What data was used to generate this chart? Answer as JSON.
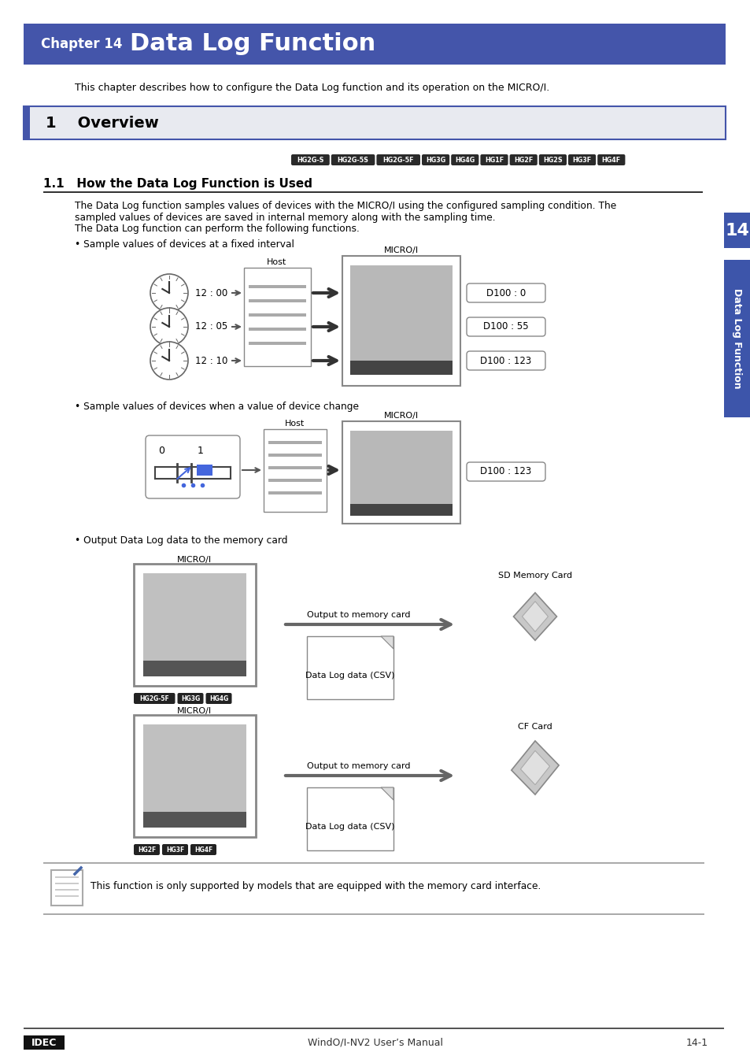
{
  "page_bg": "#ffffff",
  "header_bg": "#4455aa",
  "section1_bg": "#e8eaf0",
  "section1_border": "#4455aa",
  "model_tags": [
    "HG2G-S",
    "HG2G-5S",
    "HG2G-5F",
    "HG3G",
    "HG4G",
    "HG1F",
    "HG2F",
    "HG2S",
    "HG3F",
    "HG4F"
  ],
  "diagram1_times": [
    "12 : 00",
    "12 : 05",
    "12 : 10"
  ],
  "diagram1_values": [
    "D100 : 0",
    "D100 : 55",
    "D100 : 123"
  ],
  "diagram2_value": "D100 : 123",
  "diagram3_label1": "Output to memory card",
  "diagram3_label2": "Output to memory card",
  "diagram3_data1": "Data Log data (CSV)",
  "diagram3_data2": "Data Log data (CSV)",
  "diagram3_card1": "SD Memory Card",
  "diagram3_card2": "CF Card",
  "diagram3_tags1": [
    "HG2G-5F",
    "HG3G",
    "HG4G"
  ],
  "diagram3_tags2": [
    "HG2F",
    "HG3F",
    "HG4F"
  ],
  "note_text": "This function is only supported by models that are equipped with the memory card interface.",
  "footer_left": "IDEC",
  "footer_center": "WindO/I-NV2 User’s Manual",
  "footer_right": "14-1",
  "sidebar_text": "Data Log Function",
  "sidebar_num": "14"
}
